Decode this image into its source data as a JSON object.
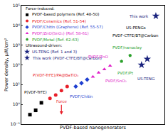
{
  "chart_data": {
    "type": "scatter",
    "x_label": "PVDF-based nanogenerators",
    "y_label": "Power density, μW/cm²",
    "log": "y",
    "grid": false,
    "legend": "upper left",
    "tick_labels": "y",
    "xlim": [
      0,
      10
    ],
    "ylim": [
      0.1,
      100000
    ],
    "yticks": [
      {
        "value": 0.1,
        "label": "10⁻¹"
      },
      {
        "value": 1,
        "label": "10⁰"
      },
      {
        "value": 10,
        "label": "10¹"
      },
      {
        "value": 100,
        "label": "10²"
      },
      {
        "value": 1000,
        "label": "10³"
      },
      {
        "value": 10000,
        "label": "10⁴"
      },
      {
        "value": 100000,
        "label": "10⁵"
      }
    ],
    "series": [
      {
        "name": "PVDF-based polymers (Ref. 48-50)",
        "group": "Force-induced:",
        "color": "#000000",
        "marker": "square",
        "x": [
          0.6,
          1.0,
          1.4
        ],
        "values": [
          0.3,
          0.5,
          1.2
        ]
      },
      {
        "name": "PVDF/Ceramics (Ref. 51-54)",
        "group": "Force-induced:",
        "color": "#e8202a",
        "marker": "circle",
        "x": [
          2.0,
          2.4,
          2.8,
          3.2
        ],
        "values": [
          2,
          3,
          5,
          8
        ]
      },
      {
        "name": "PVDF/Chitin (Graphene) (Ref. 55-57)",
        "group": "Force-induced:",
        "color": "#1f3fd0",
        "marker": "diamond",
        "x": [
          3.8,
          4.2,
          4.6
        ],
        "values": [
          8,
          12,
          18
        ]
      },
      {
        "name": "PVDF/ZnO(SnO₂) (Ref. 58-61)",
        "group": "Force-induced:",
        "color": "#e020c8",
        "marker": "triangle-up",
        "x": [
          5.0,
          5.4,
          5.8,
          6.2
        ],
        "values": [
          25,
          40,
          60,
          90
        ]
      },
      {
        "name": "PVDF/Metal (Ref. 62-63)",
        "group": "Force-induced:",
        "color": "#2aa02a",
        "marker": "pentagon",
        "x": [
          7.0,
          7.6
        ],
        "values": [
          150,
          300
        ]
      },
      {
        "name": "US-TENG (Ref. 1 and 3)",
        "group": "Ultrasound-driven:",
        "color": "#1a237e",
        "marker": "star",
        "x": [
          8.4,
          8.8
        ],
        "values": [
          100,
          200
        ]
      },
      {
        "name": "This work (PVDF-CTFE/BT@Carbon)",
        "group": "Ultrasound-driven:",
        "color": "#1a237e",
        "marker": "star",
        "x": [
          9.4
        ],
        "values": [
          30000
        ]
      }
    ],
    "annotations": [
      {
        "text": "P(VDF-TrFE)",
        "x": 1.0,
        "y": 4,
        "color": "#000000"
      },
      {
        "text": "P(VDF-TrFE)/PA@BaTiO₃",
        "x": 2.4,
        "y": 30,
        "color": "#e8202a"
      },
      {
        "text": "PVDF/Chitin",
        "x": 4.2,
        "y": 2.5,
        "color": "#1f3fd0"
      },
      {
        "text": "PVDF/ZnO",
        "x": 5.4,
        "y": 250,
        "color": "#e020c8"
      },
      {
        "text": "PVDF/SnO₂",
        "x": 6.6,
        "y": 15,
        "color": "#e020c8"
      },
      {
        "text": "PVDF/nanoclay",
        "x": 7.4,
        "y": 700,
        "color": "#2aa02a"
      },
      {
        "text": "PVDF/Pt",
        "x": 7.3,
        "y": 40,
        "color": "#2aa02a"
      },
      {
        "text": "US-TENG",
        "x": 8.7,
        "y": 20,
        "color": "#1a237e"
      },
      {
        "text": "This work",
        "x": 8.2,
        "y": 30000,
        "color": "#1a237e"
      },
      {
        "text": "US-PENGs",
        "x": 8.0,
        "y": 8000,
        "color": "#000000"
      },
      {
        "text": "PVDF-CTFE/BT@Carbon",
        "x": 8.0,
        "y": 3000,
        "color": "#000000"
      },
      {
        "text": "Force",
        "x": 2.8,
        "y": 0.3,
        "color": "#e8202a",
        "marker": "arrow"
      }
    ]
  }
}
